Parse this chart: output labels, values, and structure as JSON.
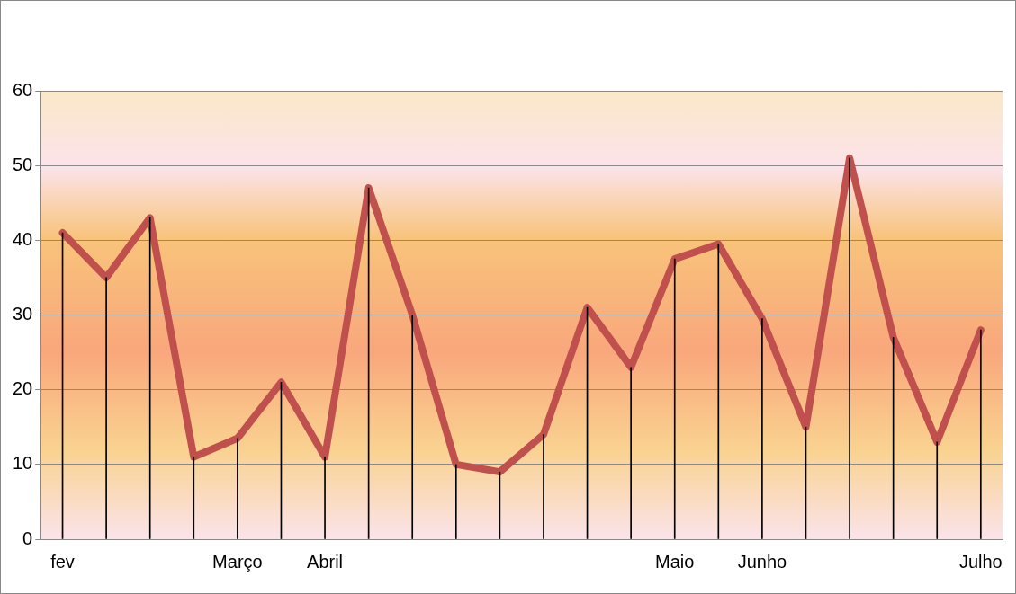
{
  "chart_data": {
    "type": "line",
    "categories": [
      "fev",
      null,
      null,
      null,
      "Março",
      null,
      "Abril",
      null,
      null,
      null,
      null,
      null,
      null,
      null,
      "Maio",
      null,
      "Junho",
      null,
      null,
      null,
      null,
      "Julho"
    ],
    "series": [
      {
        "type": "bar",
        "color": "#000000",
        "values": [
          41,
          35,
          43,
          11,
          13.5,
          21,
          11,
          47,
          30,
          10,
          9,
          14,
          31,
          23,
          37.5,
          39.5,
          29.5,
          15,
          51,
          27,
          13,
          28
        ]
      },
      {
        "color": "#c0504d",
        "values": [
          41,
          35,
          43,
          11,
          13.5,
          21,
          11,
          47,
          30,
          10,
          9,
          14,
          31,
          23,
          37.5,
          39.5,
          29.5,
          15,
          51,
          27,
          13,
          28
        ]
      }
    ],
    "ylim": [
      0,
      60
    ],
    "yticks": [
      0,
      10,
      20,
      30,
      40,
      50,
      60
    ],
    "grid": "y",
    "legend": false,
    "marker": "none",
    "line_style": "solid"
  }
}
